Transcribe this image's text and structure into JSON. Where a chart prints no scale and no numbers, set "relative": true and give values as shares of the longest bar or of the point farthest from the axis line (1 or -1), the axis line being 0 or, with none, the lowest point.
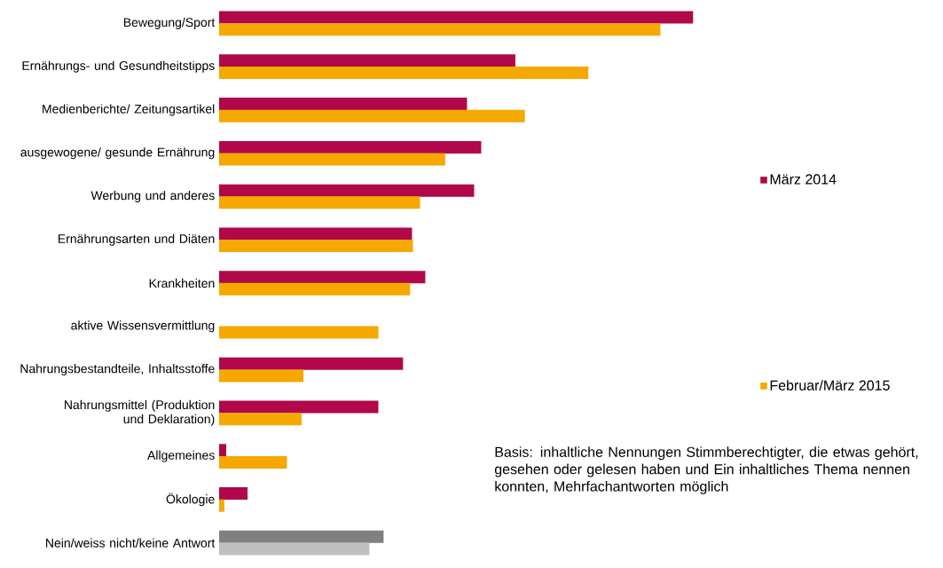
{
  "chart_data": {
    "type": "bar",
    "orientation": "horizontal",
    "relative": true,
    "legend": "right",
    "categories": [
      "Bewegung/Sport",
      "Ernährungs- und Gesundheitstipps",
      "Medienberichte/ Zeitungsartikel",
      "ausgewogene/ gesunde Ernährung",
      "Werbung und anderes",
      "Ernährungsarten und Diäten",
      "Krankheiten",
      "aktive Wissensvermittlung",
      "Nahrungsbestandteile, Inhaltsstoffe",
      "Nahrungsmittel (Produktion und Deklaration)",
      "Allgemeines",
      "Ökologie",
      "Nein/weiss nicht/keine Antwort"
    ],
    "series": [
      {
        "name": "März 2014",
        "color": "#b0084a",
        "colors": [
          "#b0084a",
          "#b0084a",
          "#b0084a",
          "#b0084a",
          "#b0084a",
          "#b0084a",
          "#b0084a",
          "#b0084a",
          "#b0084a",
          "#b0084a",
          "#b0084a",
          "#b0084a",
          "#808080"
        ],
        "values": [
          1.0,
          0.625,
          0.523,
          0.553,
          0.538,
          0.407,
          0.435,
          null,
          0.388,
          0.336,
          0.015,
          0.06,
          0.347
        ]
      },
      {
        "name": "Februar/März 2015",
        "color": "#f5a800",
        "colors": [
          "#f5a800",
          "#f5a800",
          "#f5a800",
          "#f5a800",
          "#f5a800",
          "#f5a800",
          "#f5a800",
          "#f5a800",
          "#f5a800",
          "#f5a800",
          "#f5a800",
          "#f5a800",
          "#c0c0c0"
        ],
        "values": [
          0.931,
          0.779,
          0.645,
          0.477,
          0.424,
          0.409,
          0.403,
          0.336,
          0.178,
          0.174,
          0.143,
          0.011,
          0.317
        ]
      }
    ],
    "annotations": [
      "Basis: inhaltliche Nennungen Stimmberechtigter, die etwas gehört, gesehen oder gelesen haben und Ein inhaltliches Thema nennen konnten, Mehrfachantworten möglich"
    ]
  }
}
